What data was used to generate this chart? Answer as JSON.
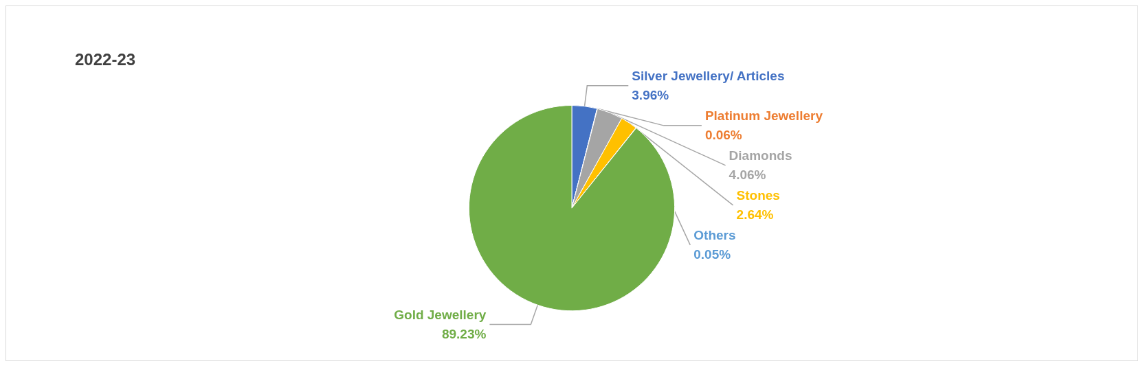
{
  "chart_data": {
    "type": "pie",
    "title": "2022-23",
    "categories": [
      "Silver Jewellery/ Articles",
      "Platinum Jewellery",
      "Diamonds",
      "Stones",
      "Others",
      "Gold Jewellery"
    ],
    "values": [
      3.96,
      0.06,
      4.06,
      2.64,
      0.05,
      89.23
    ],
    "value_labels": [
      "3.96%",
      "0.06%",
      "4.06%",
      "2.64%",
      "0.05%",
      "89.23%"
    ],
    "colors": [
      "#4472c4",
      "#ed7d31",
      "#a5a5a5",
      "#ffc000",
      "#5b9bd5",
      "#70ad47"
    ],
    "legend": false
  }
}
